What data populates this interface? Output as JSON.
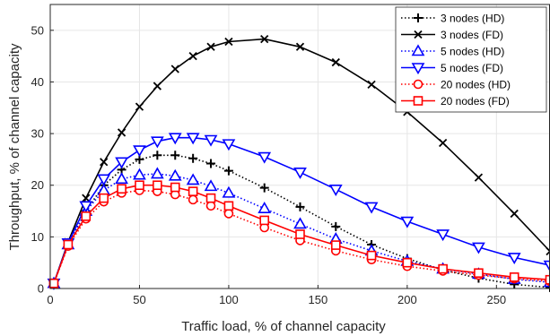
{
  "chart_data": {
    "type": "line",
    "xlabel": "Traffic load, % of channel capacity",
    "ylabel": "Throughput, % of channel capacity",
    "xlim": [
      0,
      280
    ],
    "ylim": [
      0,
      55
    ],
    "xticks": [
      0,
      50,
      100,
      150,
      200,
      250
    ],
    "yticks": [
      0,
      10,
      20,
      30,
      40,
      50
    ],
    "grid": true,
    "legend_position": "top-right",
    "series": [
      {
        "name": "3 nodes (HD)",
        "color": "#000000",
        "line": "dotted",
        "marker": "plus",
        "x": [
          2,
          10,
          20,
          30,
          40,
          50,
          60,
          70,
          80,
          90,
          100,
          120,
          140,
          160,
          180,
          200,
          220,
          240,
          260,
          280
        ],
        "y": [
          1,
          8.5,
          15,
          20,
          23,
          25,
          25.8,
          25.8,
          25.2,
          24.2,
          22.8,
          19.5,
          15.8,
          12,
          8.5,
          5.8,
          3.6,
          2,
          0.8,
          0.2
        ]
      },
      {
        "name": "3 nodes (FD)",
        "color": "#000000",
        "line": "solid",
        "marker": "x",
        "x": [
          2,
          10,
          20,
          30,
          40,
          50,
          60,
          70,
          80,
          90,
          100,
          120,
          140,
          160,
          180,
          200,
          220,
          240,
          260,
          280
        ],
        "y": [
          1,
          9,
          17.5,
          24.5,
          30.2,
          35.2,
          39.2,
          42.5,
          45,
          46.8,
          47.8,
          48.3,
          46.8,
          43.8,
          39.5,
          34.2,
          28.2,
          21.5,
          14.5,
          7.2
        ]
      },
      {
        "name": "5 nodes (HD)",
        "color": "#0000ff",
        "line": "dotted",
        "marker": "triangle-up",
        "x": [
          2,
          10,
          20,
          30,
          40,
          50,
          60,
          70,
          80,
          90,
          100,
          120,
          140,
          160,
          180,
          200,
          220,
          240,
          260,
          280
        ],
        "y": [
          1,
          8.5,
          15,
          19,
          21.2,
          22,
          22.2,
          21.8,
          21,
          19.8,
          18.5,
          15.5,
          12.5,
          9.6,
          7.3,
          5.3,
          3.8,
          2.8,
          1.8,
          1.2
        ]
      },
      {
        "name": "5 nodes (FD)",
        "color": "#0000ff",
        "line": "solid",
        "marker": "triangle-down",
        "x": [
          2,
          10,
          20,
          30,
          40,
          50,
          60,
          70,
          80,
          90,
          100,
          120,
          140,
          160,
          180,
          200,
          220,
          240,
          260,
          280
        ],
        "y": [
          1,
          8.8,
          16,
          21.2,
          24.5,
          26.8,
          28.5,
          29.2,
          29.2,
          28.8,
          28,
          25.5,
          22.5,
          19.2,
          15.8,
          13,
          10.5,
          8,
          6,
          4.5
        ]
      },
      {
        "name": "20 nodes (HD)",
        "color": "#ff0000",
        "line": "dotted",
        "marker": "circle",
        "x": [
          2,
          10,
          20,
          30,
          40,
          50,
          60,
          70,
          80,
          90,
          100,
          120,
          140,
          160,
          180,
          200,
          220,
          240,
          260,
          280
        ],
        "y": [
          1,
          8.2,
          13.5,
          16.8,
          18.5,
          19,
          18.8,
          18.2,
          17.2,
          16,
          14.5,
          11.8,
          9.3,
          7.3,
          5.6,
          4.3,
          3.4,
          2.6,
          1.9,
          1.4
        ]
      },
      {
        "name": "20 nodes (FD)",
        "color": "#ff0000",
        "line": "solid",
        "marker": "square",
        "x": [
          2,
          10,
          20,
          30,
          40,
          50,
          60,
          70,
          80,
          90,
          100,
          120,
          140,
          160,
          180,
          200,
          220,
          240,
          260,
          280
        ],
        "y": [
          1,
          8.5,
          14,
          17.5,
          19.3,
          20,
          20,
          19.6,
          18.8,
          17.5,
          16,
          13.2,
          10.5,
          8.4,
          6.4,
          5,
          3.8,
          3,
          2.2,
          1.7
        ]
      }
    ]
  }
}
